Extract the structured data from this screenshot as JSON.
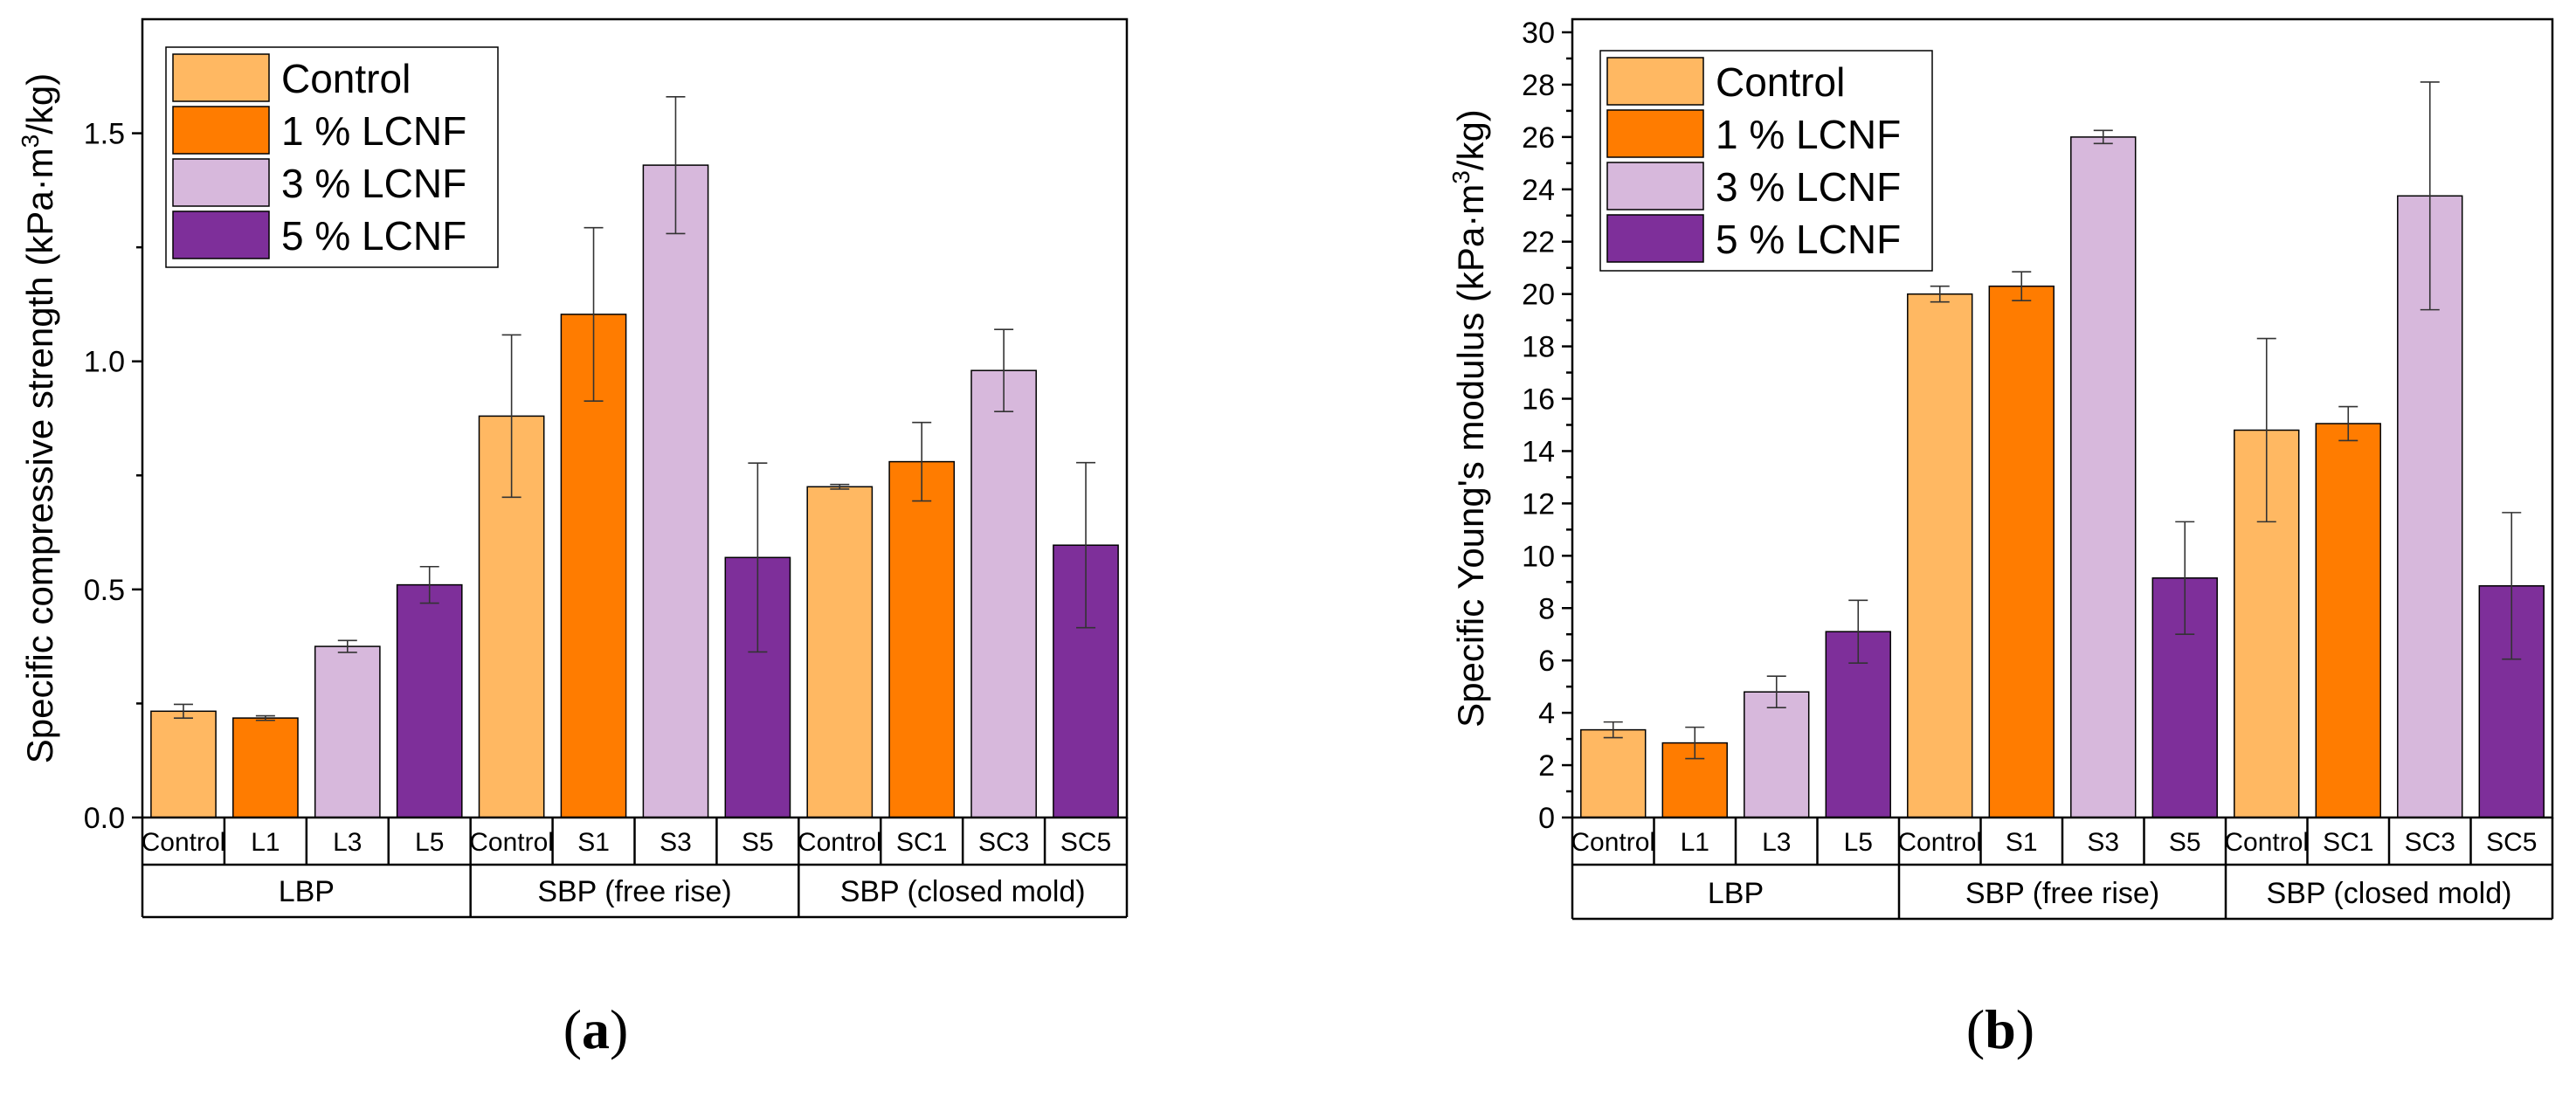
{
  "chart_data": [
    {
      "type": "bar",
      "caption": "a",
      "ylabel": "Specific compressive strength (kPa·m³/kg)",
      "ylabel_parts": {
        "pre": "Specific compressive strength (kPa·m",
        "sup": "3",
        "post": "/kg)"
      },
      "ylim": [
        0,
        1.75
      ],
      "yticks": [
        0.0,
        0.5,
        1.0,
        1.5
      ],
      "ytick_labels": [
        "0.0",
        "0.5",
        "1.0",
        "1.5"
      ],
      "legend": [
        "Control",
        "1 % LCNF",
        "3 % LCNF",
        "5 % LCNF"
      ],
      "legend_position": "top-left",
      "groups": [
        {
          "name": "LBP",
          "categories": [
            "Control",
            "L1",
            "L3",
            "L5"
          ],
          "values": [
            0.233,
            0.218,
            0.375,
            0.51
          ],
          "errors": [
            0.015,
            0.005,
            0.013,
            0.04
          ]
        },
        {
          "name": "SBP (free rise)",
          "categories": [
            "Control",
            "S1",
            "S3",
            "S5"
          ],
          "values": [
            0.88,
            1.103,
            1.43,
            0.57
          ],
          "errors": [
            0.178,
            0.19,
            0.15,
            0.207
          ]
        },
        {
          "name": "SBP (closed mold)",
          "categories": [
            "Control",
            "SC1",
            "SC3",
            "SC5"
          ],
          "values": [
            0.725,
            0.78,
            0.98,
            0.597
          ],
          "errors": [
            0.005,
            0.086,
            0.09,
            0.181
          ]
        }
      ]
    },
    {
      "type": "bar",
      "caption": "b",
      "ylabel": "Specific Young's modulus (kPa·m³/kg)",
      "ylabel_parts": {
        "pre": "Specific Young's modulus (kPa·m",
        "sup": "3",
        "post": "/kg)"
      },
      "ylim": [
        0,
        30.5
      ],
      "yticks": [
        0,
        2,
        4,
        6,
        8,
        10,
        12,
        14,
        16,
        18,
        20,
        22,
        24,
        26,
        28,
        30
      ],
      "ytick_labels": [
        "0",
        "2",
        "4",
        "6",
        "8",
        "10",
        "12",
        "14",
        "16",
        "18",
        "20",
        "22",
        "24",
        "26",
        "28",
        "30"
      ],
      "legend": [
        "Control",
        "1 % LCNF",
        "3 % LCNF",
        "5 % LCNF"
      ],
      "legend_position": "top-left",
      "groups": [
        {
          "name": "LBP",
          "categories": [
            "Control",
            "L1",
            "L3",
            "L5"
          ],
          "values": [
            3.35,
            2.85,
            4.8,
            7.1
          ],
          "errors": [
            0.3,
            0.6,
            0.6,
            1.2
          ]
        },
        {
          "name": "SBP (free rise)",
          "categories": [
            "Control",
            "S1",
            "S3",
            "S5"
          ],
          "values": [
            20.0,
            20.3,
            26.0,
            9.15
          ],
          "errors": [
            0.3,
            0.55,
            0.25,
            2.15
          ]
        },
        {
          "name": "SBP (closed mold)",
          "categories": [
            "Control",
            "SC1",
            "SC3",
            "SC5"
          ],
          "values": [
            14.8,
            15.05,
            23.75,
            8.85
          ],
          "errors": [
            3.5,
            0.65,
            4.35,
            2.8
          ]
        }
      ]
    }
  ],
  "colors": {
    "fills": [
      "#ffb862",
      "#ff7c00",
      "#d7b8dc",
      "#7e2f9a"
    ],
    "bar_edge": "#000000",
    "error_bar": "#333333"
  }
}
